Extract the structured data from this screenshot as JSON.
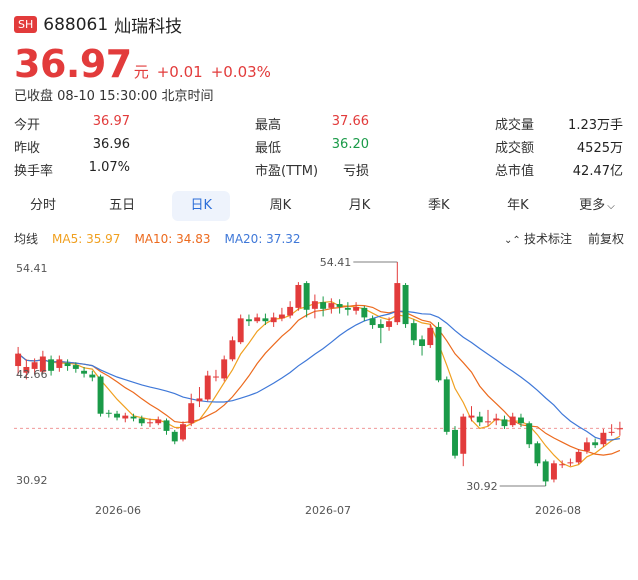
{
  "header": {
    "exchange": "SH",
    "code": "688061",
    "name": "灿瑞科技"
  },
  "quote": {
    "price": "36.97",
    "unit": "元",
    "change": "+0.01",
    "change_pct": "+0.03%",
    "status": "已收盘 08-10 15:30:00 北京时间"
  },
  "stats": [
    {
      "label": "今开",
      "value": "36.97",
      "color": "red"
    },
    {
      "label": "最高",
      "value": "37.66",
      "color": "red"
    },
    {
      "label": "成交量",
      "value": "1.23万手",
      "color": "dark"
    },
    {
      "label": "昨收",
      "value": "36.96",
      "color": "dark"
    },
    {
      "label": "最低",
      "value": "36.20",
      "color": "green"
    },
    {
      "label": "成交额",
      "value": "4525万",
      "color": "dark"
    },
    {
      "label": "换手率",
      "value": "1.07%",
      "color": "dark"
    },
    {
      "label": "市盈(TTM)",
      "value": "亏损",
      "color": "dark"
    },
    {
      "label": "总市值",
      "value": "42.47亿",
      "color": "dark"
    }
  ],
  "tabs": [
    "分时",
    "五日",
    "日K",
    "周K",
    "月K",
    "季K",
    "年K",
    "更多"
  ],
  "active_tab": "日K",
  "ma": {
    "label": "均线",
    "ma5": "MA5: 35.97",
    "ma10": "MA10: 34.83",
    "ma20": "MA20: 37.32"
  },
  "tools": {
    "indicator": "技术标注",
    "adjust": "前复权"
  },
  "colors": {
    "up": "#e23b3b",
    "down": "#1a9a48",
    "ma5": "#f0a020",
    "ma10": "#ec6a1e",
    "ma20": "#3f78d8"
  },
  "chart_data": {
    "type": "candlestick",
    "y_labels": [
      "54.41",
      "42.66",
      "30.92"
    ],
    "y_range": [
      30.92,
      54.41
    ],
    "x_labels": [
      "2026-06",
      "2026-07",
      "2026-08"
    ],
    "high_label": "54.41",
    "low_label": "30.92",
    "last_close": 36.97,
    "candles": [
      [
        43.5,
        44.8,
        42.6,
        45.5
      ],
      [
        42.8,
        43.4,
        42.1,
        44.2
      ],
      [
        43.2,
        43.9,
        42.6,
        44.3
      ],
      [
        42.9,
        44.5,
        42.7,
        45.1
      ],
      [
        44.2,
        43.0,
        42.5,
        44.6
      ],
      [
        43.3,
        44.2,
        42.9,
        44.6
      ],
      [
        43.8,
        43.5,
        43.0,
        44.2
      ],
      [
        43.6,
        43.2,
        42.8,
        43.9
      ],
      [
        43.0,
        42.7,
        42.3,
        43.4
      ],
      [
        42.6,
        42.3,
        41.9,
        43.0
      ],
      [
        42.4,
        38.5,
        38.2,
        42.6
      ],
      [
        38.6,
        38.5,
        38.1,
        38.9
      ],
      [
        38.5,
        38.1,
        37.8,
        38.8
      ],
      [
        38.0,
        38.3,
        37.6,
        38.6
      ],
      [
        38.2,
        38.0,
        37.7,
        38.5
      ],
      [
        38.0,
        37.5,
        37.2,
        38.3
      ],
      [
        37.6,
        37.6,
        37.1,
        38.0
      ],
      [
        37.5,
        37.9,
        37.3,
        38.2
      ],
      [
        37.8,
        36.7,
        36.3,
        38.0
      ],
      [
        36.6,
        35.6,
        35.3,
        36.8
      ],
      [
        35.8,
        37.4,
        35.6,
        37.7
      ],
      [
        37.5,
        39.6,
        37.2,
        40.6
      ],
      [
        39.8,
        40.1,
        39.2,
        41.3
      ],
      [
        40.0,
        42.5,
        39.8,
        43.0
      ],
      [
        42.4,
        42.4,
        41.9,
        43.1
      ],
      [
        42.2,
        44.2,
        41.9,
        44.6
      ],
      [
        44.2,
        46.2,
        44.0,
        46.6
      ],
      [
        46.0,
        48.5,
        45.8,
        48.9
      ],
      [
        48.4,
        48.2,
        47.7,
        48.9
      ],
      [
        48.2,
        48.6,
        48.0,
        49.0
      ],
      [
        48.5,
        48.2,
        47.8,
        49.0
      ],
      [
        48.1,
        48.6,
        47.6,
        49.1
      ],
      [
        48.5,
        48.9,
        48.2,
        49.6
      ],
      [
        48.8,
        49.7,
        48.5,
        50.3
      ],
      [
        49.6,
        52.0,
        49.3,
        52.3
      ],
      [
        52.2,
        49.4,
        48.6,
        52.4
      ],
      [
        49.5,
        50.3,
        48.5,
        51.0
      ],
      [
        50.2,
        49.5,
        48.7,
        50.8
      ],
      [
        49.6,
        50.1,
        49.0,
        50.6
      ],
      [
        50.0,
        49.7,
        49.0,
        50.5
      ],
      [
        49.6,
        49.4,
        48.8,
        50.2
      ],
      [
        49.3,
        49.7,
        48.9,
        50.2
      ],
      [
        49.6,
        48.6,
        48.2,
        49.8
      ],
      [
        48.5,
        47.8,
        47.4,
        48.8
      ],
      [
        47.9,
        47.5,
        45.9,
        48.4
      ],
      [
        47.6,
        48.2,
        47.2,
        48.6
      ],
      [
        48.1,
        52.2,
        47.8,
        54.41
      ],
      [
        52.0,
        47.9,
        47.5,
        52.2
      ],
      [
        48.0,
        46.2,
        45.7,
        48.4
      ],
      [
        46.3,
        45.6,
        44.6,
        46.7
      ],
      [
        45.7,
        47.5,
        45.4,
        47.9
      ],
      [
        47.6,
        42.0,
        41.8,
        48.1
      ],
      [
        42.1,
        36.6,
        36.3,
        42.4
      ],
      [
        36.8,
        34.1,
        33.8,
        37.2
      ],
      [
        34.3,
        38.2,
        33.0,
        38.5
      ],
      [
        38.1,
        38.3,
        37.7,
        39.3
      ],
      [
        38.2,
        37.6,
        37.2,
        38.7
      ],
      [
        37.6,
        37.7,
        37.2,
        38.9
      ],
      [
        37.8,
        38.0,
        37.3,
        38.5
      ],
      [
        37.9,
        37.2,
        36.9,
        38.3
      ],
      [
        37.3,
        38.2,
        37.1,
        38.6
      ],
      [
        38.1,
        37.5,
        37.1,
        38.5
      ],
      [
        37.5,
        35.3,
        34.9,
        37.7
      ],
      [
        35.4,
        33.3,
        33.0,
        35.6
      ],
      [
        33.5,
        31.4,
        30.92,
        33.7
      ],
      [
        31.6,
        33.3,
        31.3,
        33.6
      ],
      [
        33.2,
        33.2,
        32.8,
        33.6
      ],
      [
        33.3,
        33.4,
        33.0,
        33.8
      ],
      [
        33.4,
        34.5,
        33.2,
        34.8
      ],
      [
        34.6,
        35.5,
        34.3,
        36.0
      ],
      [
        35.5,
        35.2,
        34.9,
        35.9
      ],
      [
        35.3,
        36.5,
        35.0,
        36.9
      ],
      [
        36.5,
        36.6,
        36.2,
        37.4
      ],
      [
        36.96,
        36.97,
        36.2,
        37.66
      ]
    ]
  }
}
